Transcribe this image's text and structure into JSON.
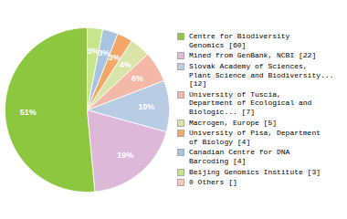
{
  "chart_data": {
    "type": "pie",
    "categories": [
      "Centre for Biodiversity\nGenomics [60]",
      "Mined from GenBank, NCBI [22]",
      "Slovak Academy of Sciences,\nPlant Science and Biodiversity...\n[12]",
      "University of Tuscia,\nDepartment of Ecological and\nBiologic... [7]",
      "Macrogen, Europe [5]",
      "University of Pisa, Department\nof Biology [4]",
      "Canadian Centre for DNA\nBarcoding [4]",
      "Beijing Genomics Institute [3]",
      "0 Others []"
    ],
    "values": [
      51,
      19,
      10,
      6,
      4,
      3,
      3,
      3,
      0
    ],
    "value_labels": [
      "51%",
      "19%",
      "10%",
      "6%",
      "4%",
      "3%",
      "3%",
      "3%",
      null
    ],
    "colors": [
      "#8dc63f",
      "#ddb8d8",
      "#b8cce4",
      "#f4b8a8",
      "#d8e4a8",
      "#f4a868",
      "#a8c4e0",
      "#c8e48c",
      "#f4c8c0"
    ],
    "data_labels": true
  }
}
